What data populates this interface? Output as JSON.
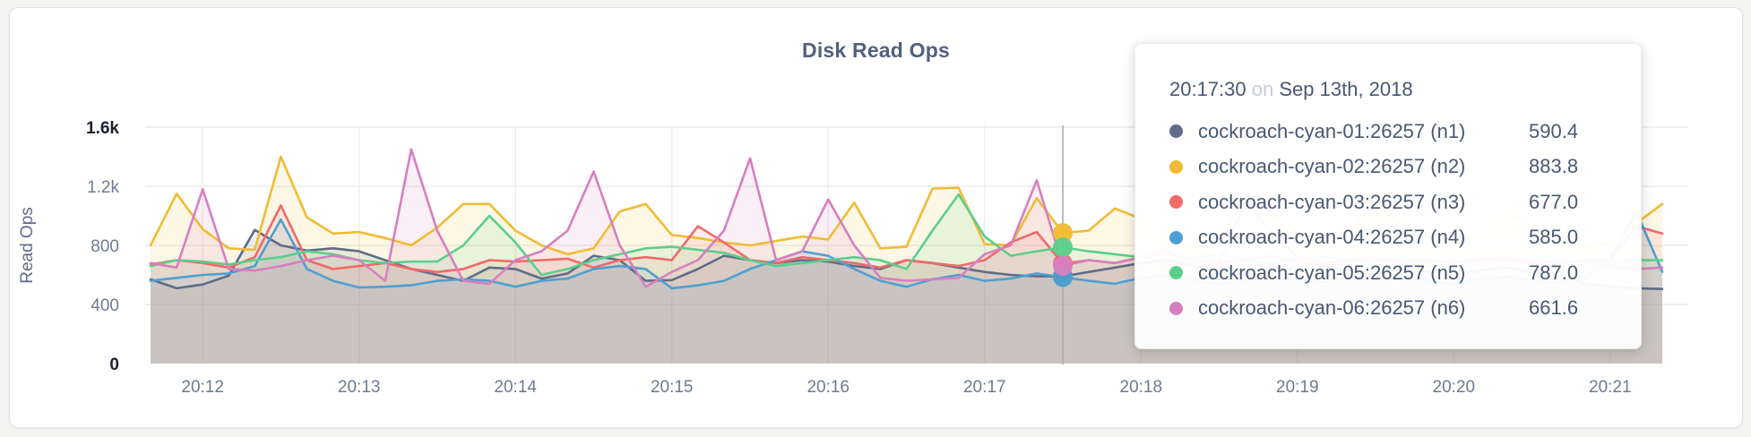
{
  "chart_data": {
    "type": "line",
    "title": "Disk Read Ops",
    "ylabel": "Read Ops",
    "xlabel": "",
    "ylim": [
      0,
      1600
    ],
    "grid": true,
    "legend_position": "tooltip-only",
    "x_start": "20:11:40",
    "x_step_seconds": 10,
    "x_ticks": [
      {
        "label": "20:12",
        "index": 2
      },
      {
        "label": "20:13",
        "index": 8
      },
      {
        "label": "20:14",
        "index": 14
      },
      {
        "label": "20:15",
        "index": 20
      },
      {
        "label": "20:16",
        "index": 26
      },
      {
        "label": "20:17",
        "index": 32
      },
      {
        "label": "20:18",
        "index": 38
      },
      {
        "label": "20:19",
        "index": 44
      },
      {
        "label": "20:20",
        "index": 50
      },
      {
        "label": "20:21",
        "index": 56
      }
    ],
    "y_ticks": [
      {
        "label": "0",
        "value": 0,
        "emphasis": true
      },
      {
        "label": "400",
        "value": 400,
        "emphasis": false
      },
      {
        "label": "800",
        "value": 800,
        "emphasis": false
      },
      {
        "label": "1.2k",
        "value": 1200,
        "emphasis": false
      },
      {
        "label": "1.6k",
        "value": 1600,
        "emphasis": true
      }
    ],
    "hover": {
      "index": 35,
      "time": "20:17:30",
      "date": "Sep 13th, 2018"
    },
    "series": [
      {
        "name": "cockroach-cyan-01:26257 (n1)",
        "short": "n1",
        "color": "#5F6C87",
        "values": [
          570,
          510,
          535,
          595,
          905,
          800,
          765,
          780,
          760,
          700,
          640,
          600,
          560,
          650,
          640,
          575,
          610,
          730,
          700,
          560,
          565,
          640,
          730,
          700,
          680,
          700,
          690,
          660,
          640,
          700,
          680,
          650,
          620,
          600,
          590,
          590.4,
          620,
          650,
          680,
          700,
          660,
          630,
          650,
          620,
          640,
          660,
          630,
          610,
          640,
          620,
          600,
          630,
          650,
          620,
          610,
          540,
          520,
          510,
          505
        ]
      },
      {
        "name": "cockroach-cyan-02:26257 (n2)",
        "short": "n2",
        "color": "#F0BC33",
        "values": [
          800,
          1150,
          910,
          780,
          770,
          1400,
          990,
          880,
          890,
          850,
          800,
          920,
          1080,
          1080,
          900,
          800,
          740,
          780,
          1030,
          1080,
          870,
          850,
          820,
          800,
          830,
          860,
          840,
          1090,
          780,
          790,
          1185,
          1190,
          810,
          800,
          1120,
          883.8,
          900,
          1050,
          980,
          820,
          780,
          850,
          1100,
          1020,
          880,
          820,
          900,
          1080,
          950,
          860,
          800,
          880,
          1040,
          920,
          850,
          790,
          820,
          950,
          1080
        ]
      },
      {
        "name": "cockroach-cyan-03:26257 (n3)",
        "short": "n3",
        "color": "#F16969",
        "values": [
          670,
          700,
          680,
          650,
          720,
          1070,
          700,
          640,
          660,
          680,
          640,
          620,
          640,
          700,
          690,
          700,
          710,
          650,
          700,
          720,
          700,
          930,
          820,
          700,
          680,
          720,
          700,
          680,
          650,
          700,
          680,
          660,
          700,
          820,
          890,
          677,
          700,
          680,
          720,
          750,
          700,
          680,
          700,
          730,
          690,
          670,
          700,
          720,
          680,
          700,
          690,
          710,
          700,
          680,
          690,
          700,
          700,
          930,
          880
        ]
      },
      {
        "name": "cockroach-cyan-04:26257 (n4)",
        "short": "n4",
        "color": "#4E9FD1",
        "values": [
          560,
          580,
          600,
          610,
          660,
          975,
          640,
          560,
          515,
          520,
          530,
          560,
          570,
          560,
          520,
          560,
          575,
          640,
          660,
          640,
          510,
          530,
          560,
          640,
          700,
          760,
          730,
          640,
          560,
          520,
          570,
          600,
          560,
          575,
          610,
          585,
          560,
          540,
          580,
          600,
          560,
          540,
          560,
          590,
          570,
          550,
          580,
          600,
          570,
          560,
          540,
          570,
          590,
          560,
          550,
          570,
          700,
          1030,
          620
        ]
      },
      {
        "name": "cockroach-cyan-05:26257 (n5)",
        "short": "n5",
        "color": "#5CCE8C",
        "values": [
          660,
          700,
          690,
          670,
          700,
          720,
          760,
          740,
          700,
          680,
          690,
          690,
          800,
          1000,
          820,
          600,
          640,
          700,
          740,
          780,
          790,
          770,
          750,
          700,
          660,
          680,
          700,
          720,
          700,
          640,
          900,
          1145,
          860,
          730,
          760,
          787,
          760,
          740,
          720,
          700,
          720,
          740,
          700,
          680,
          700,
          720,
          700,
          690,
          710,
          700,
          690,
          700,
          720,
          700,
          690,
          700,
          690,
          700,
          700
        ]
      },
      {
        "name": "cockroach-cyan-06:26257 (n6)",
        "short": "n6",
        "color": "#D77FBF",
        "values": [
          680,
          650,
          1180,
          640,
          630,
          660,
          700,
          730,
          700,
          560,
          1450,
          900,
          560,
          540,
          700,
          760,
          900,
          1300,
          800,
          520,
          620,
          700,
          900,
          1390,
          700,
          760,
          1110,
          800,
          580,
          560,
          570,
          580,
          740,
          800,
          1240,
          661.6,
          700,
          680,
          720,
          760,
          700,
          680,
          1100,
          900,
          720,
          680,
          700,
          720,
          690,
          700,
          680,
          700,
          720,
          700,
          680,
          690,
          660,
          640,
          650
        ]
      }
    ]
  },
  "tooltip": {
    "time": "20:17:30",
    "separator": "on",
    "date": "Sep 13th, 2018",
    "rows": [
      {
        "name": "cockroach-cyan-01:26257 (n1)",
        "value": "590.4"
      },
      {
        "name": "cockroach-cyan-02:26257 (n2)",
        "value": "883.8"
      },
      {
        "name": "cockroach-cyan-03:26257 (n3)",
        "value": "677.0"
      },
      {
        "name": "cockroach-cyan-04:26257 (n4)",
        "value": "585.0"
      },
      {
        "name": "cockroach-cyan-05:26257 (n5)",
        "value": "787.0"
      },
      {
        "name": "cockroach-cyan-06:26257 (n6)",
        "value": "661.6"
      }
    ]
  }
}
